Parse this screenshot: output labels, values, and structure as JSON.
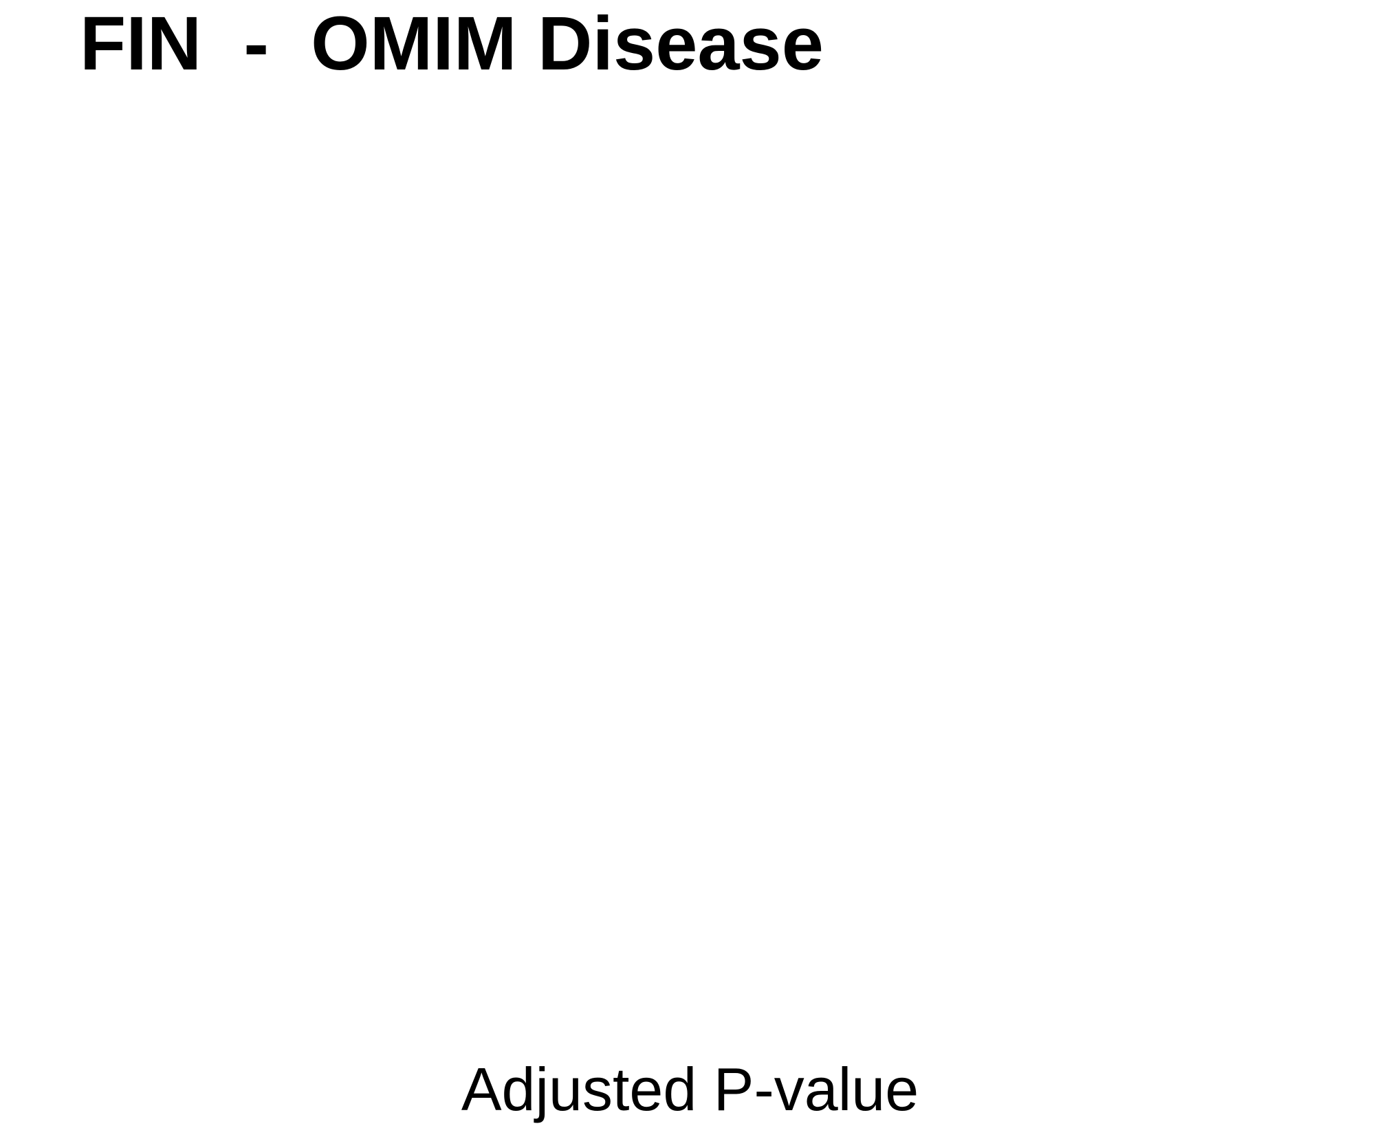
{
  "chart_data": {
    "type": "bar",
    "title": "FIN  -  OMIM Disease",
    "xlabel": "Adjusted P-value",
    "ylabel": "",
    "categories": [],
    "values": [],
    "grid": false
  }
}
